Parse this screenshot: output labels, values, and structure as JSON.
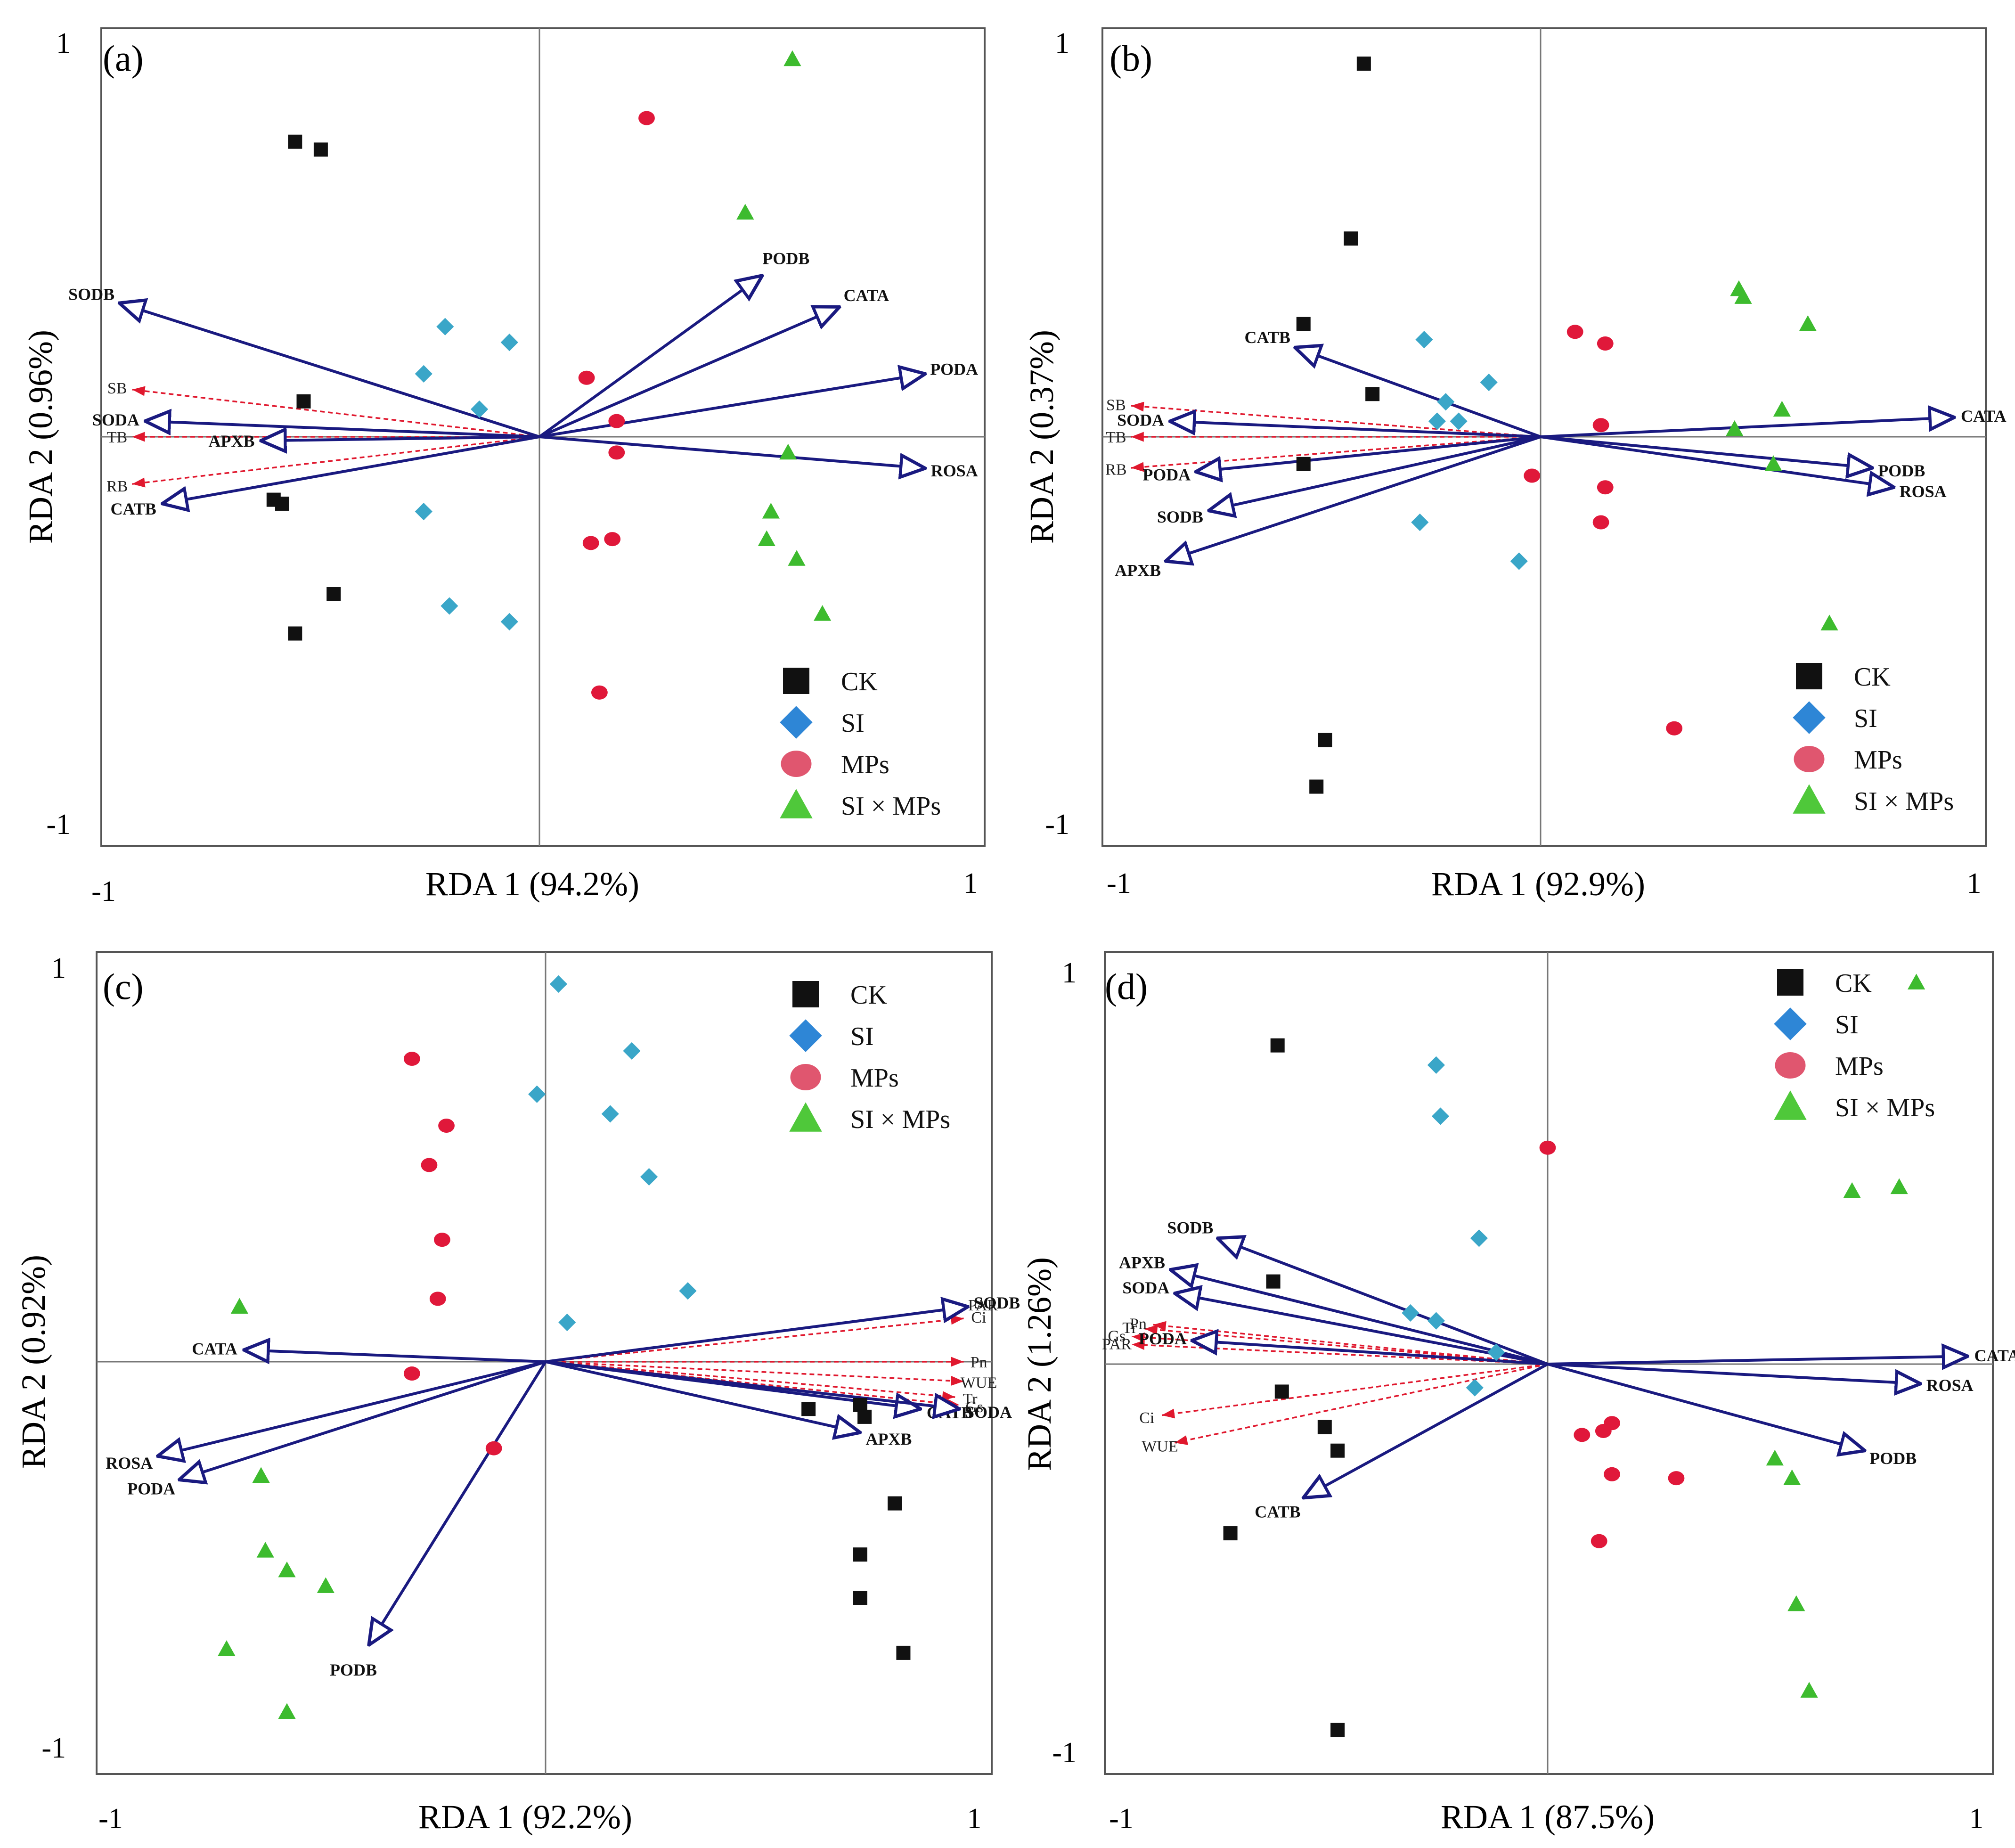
{
  "figure": {
    "legend_labels": [
      "CK",
      "SI",
      "MPs",
      "SI × MPs"
    ],
    "colors": {
      "CK": "#111111",
      "SI": "#3aa6c8",
      "MPs": "#e0183a",
      "SIxMPs": "#3dbb2e",
      "legend_SI": "#2e86d6",
      "legend_MPs": "#e0566f",
      "legend_SIxMPs": "#4fc83a",
      "response": "#1a1a80",
      "explanatory": "#e0182e",
      "axis": "#555555"
    }
  },
  "chart_data": [
    {
      "type": "scatter",
      "panel_label": "(a)",
      "xlabel": "RDA 1 (94.2%)",
      "ylabel": "RDA 2 (0.96%)",
      "xlim": [
        -1,
        1
      ],
      "ylim": [
        -1,
        1
      ],
      "x_ticks": [
        "-1",
        "1"
      ],
      "y_ticks": [
        "1",
        "-1"
      ],
      "legend": "bottom-right",
      "series": [
        {
          "name": "CK",
          "points": [
            [
              -0.57,
              0.75
            ],
            [
              -0.51,
              0.73
            ],
            [
              -0.55,
              0.09
            ],
            [
              -0.62,
              -0.16
            ],
            [
              -0.6,
              -0.17
            ],
            [
              -0.48,
              -0.4
            ],
            [
              -0.57,
              -0.5
            ]
          ]
        },
        {
          "name": "SI",
          "points": [
            [
              -0.22,
              0.28
            ],
            [
              -0.07,
              0.24
            ],
            [
              -0.27,
              0.16
            ],
            [
              -0.14,
              0.07
            ],
            [
              -0.27,
              -0.19
            ],
            [
              -0.21,
              -0.43
            ],
            [
              -0.07,
              -0.47
            ]
          ]
        },
        {
          "name": "MPs",
          "points": [
            [
              0.25,
              0.81
            ],
            [
              0.11,
              0.15
            ],
            [
              0.18,
              0.04
            ],
            [
              0.18,
              -0.04
            ],
            [
              0.17,
              -0.26
            ],
            [
              0.12,
              -0.27
            ],
            [
              0.14,
              -0.65
            ]
          ]
        },
        {
          "name": "SI × MPs",
          "points": [
            [
              0.59,
              0.96
            ],
            [
              0.48,
              0.57
            ],
            [
              0.58,
              -0.04
            ],
            [
              0.54,
              -0.19
            ],
            [
              0.53,
              -0.26
            ],
            [
              0.6,
              -0.31
            ],
            [
              0.66,
              -0.45
            ]
          ]
        }
      ],
      "response_vectors": [
        {
          "label": "PODB",
          "x": 0.52,
          "y": 0.41
        },
        {
          "label": "CATA",
          "x": 0.7,
          "y": 0.33
        },
        {
          "label": "PODA",
          "x": 0.9,
          "y": 0.16
        },
        {
          "label": "ROSA",
          "x": 0.9,
          "y": -0.08
        },
        {
          "label": "SODB",
          "x": -0.98,
          "y": 0.34
        },
        {
          "label": "SODA",
          "x": -0.92,
          "y": 0.04
        },
        {
          "label": "APXB",
          "x": -0.65,
          "y": -0.01
        },
        {
          "label": "CATB",
          "x": -0.88,
          "y": -0.17
        }
      ],
      "explanatory_vectors": [
        {
          "label": "SB",
          "x": -0.95,
          "y": 0.12
        },
        {
          "label": "TB",
          "x": -0.95,
          "y": 0.0
        },
        {
          "label": "RB",
          "x": -0.95,
          "y": -0.12
        }
      ]
    },
    {
      "type": "scatter",
      "panel_label": "(b)",
      "xlabel": "RDA 1 (92.9%)",
      "ylabel": "RDA 2 (0.37%)",
      "xlim": [
        -1,
        1
      ],
      "ylim": [
        -1,
        1
      ],
      "x_ticks": [
        "-1",
        "1"
      ],
      "y_ticks": [
        "1",
        "-1"
      ],
      "legend": "bottom-right",
      "series": [
        {
          "name": "CK",
          "points": [
            [
              -0.41,
              0.96
            ],
            [
              -0.44,
              0.51
            ],
            [
              -0.55,
              0.29
            ],
            [
              -0.39,
              0.11
            ],
            [
              -0.55,
              -0.07
            ],
            [
              -0.5,
              -0.78
            ],
            [
              -0.52,
              -0.9
            ]
          ]
        },
        {
          "name": "SI",
          "points": [
            [
              -0.27,
              0.25
            ],
            [
              -0.22,
              0.09
            ],
            [
              -0.24,
              0.04
            ],
            [
              -0.19,
              0.04
            ],
            [
              -0.12,
              0.14
            ],
            [
              -0.28,
              -0.22
            ],
            [
              -0.05,
              -0.32
            ]
          ]
        },
        {
          "name": "MPs",
          "points": [
            [
              0.08,
              0.27
            ],
            [
              0.15,
              0.24
            ],
            [
              0.14,
              0.03
            ],
            [
              -0.02,
              -0.1
            ],
            [
              0.15,
              -0.13
            ],
            [
              0.14,
              -0.22
            ],
            [
              0.31,
              -0.75
            ]
          ]
        },
        {
          "name": "SI × MPs",
          "points": [
            [
              0.46,
              0.38
            ],
            [
              0.47,
              0.36
            ],
            [
              0.62,
              0.29
            ],
            [
              0.56,
              0.07
            ],
            [
              0.45,
              0.02
            ],
            [
              0.54,
              -0.07
            ],
            [
              0.67,
              -0.48
            ]
          ]
        }
      ],
      "response_vectors": [
        {
          "label": "CATB",
          "x": -0.57,
          "y": 0.23
        },
        {
          "label": "CATA",
          "x": 0.96,
          "y": 0.05
        },
        {
          "label": "PODB",
          "x": 0.77,
          "y": -0.08
        },
        {
          "label": "ROSA",
          "x": 0.82,
          "y": -0.13
        },
        {
          "label": "SODA",
          "x": -0.86,
          "y": 0.04
        },
        {
          "label": "PODA",
          "x": -0.8,
          "y": -0.09
        },
        {
          "label": "SODB",
          "x": -0.77,
          "y": -0.19
        },
        {
          "label": "APXB",
          "x": -0.87,
          "y": -0.32
        }
      ],
      "explanatory_vectors": [
        {
          "label": "SB",
          "x": -0.95,
          "y": 0.08
        },
        {
          "label": "TB",
          "x": -0.95,
          "y": 0.0
        },
        {
          "label": "RB",
          "x": -0.95,
          "y": -0.08
        }
      ]
    },
    {
      "type": "scatter",
      "panel_label": "(c)",
      "xlabel": "RDA 1 (92.2%)",
      "ylabel": "RDA 2 (0.92%)",
      "xlim": [
        -1,
        1
      ],
      "ylim": [
        -1,
        1
      ],
      "x_ticks": [
        "-1",
        "1"
      ],
      "y_ticks": [
        "1",
        "-1"
      ],
      "legend": "top-right",
      "series": [
        {
          "name": "CK",
          "points": [
            [
              0.61,
              -0.12
            ],
            [
              0.73,
              -0.11
            ],
            [
              0.74,
              -0.14
            ],
            [
              0.81,
              -0.36
            ],
            [
              0.73,
              -0.49
            ],
            [
              0.73,
              -0.6
            ],
            [
              0.83,
              -0.74
            ]
          ]
        },
        {
          "name": "SI",
          "points": [
            [
              0.03,
              0.96
            ],
            [
              0.2,
              0.79
            ],
            [
              -0.02,
              0.68
            ],
            [
              0.15,
              0.63
            ],
            [
              0.24,
              0.47
            ],
            [
              0.33,
              0.18
            ],
            [
              0.05,
              0.1
            ]
          ]
        },
        {
          "name": "MPs",
          "points": [
            [
              -0.31,
              0.77
            ],
            [
              -0.23,
              0.6
            ],
            [
              -0.27,
              0.5
            ],
            [
              -0.24,
              0.31
            ],
            [
              -0.25,
              0.16
            ],
            [
              -0.31,
              -0.03
            ],
            [
              -0.12,
              -0.22
            ]
          ]
        },
        {
          "name": "SI × MPs",
          "points": [
            [
              -0.71,
              0.14
            ],
            [
              -0.66,
              -0.29
            ],
            [
              -0.65,
              -0.48
            ],
            [
              -0.6,
              -0.53
            ],
            [
              -0.51,
              -0.57
            ],
            [
              -0.74,
              -0.73
            ],
            [
              -0.6,
              -0.89
            ]
          ]
        }
      ],
      "response_vectors": [
        {
          "label": "CATA",
          "x": -0.7,
          "y": 0.03
        },
        {
          "label": "ROSA",
          "x": -0.9,
          "y": -0.24
        },
        {
          "label": "PODA",
          "x": -0.85,
          "y": -0.3
        },
        {
          "label": "PODB",
          "x": -0.41,
          "y": -0.72
        },
        {
          "label": "SODB",
          "x": 0.98,
          "y": 0.14
        },
        {
          "label": "CATB",
          "x": 0.87,
          "y": -0.12
        },
        {
          "label": "SODA",
          "x": 0.96,
          "y": -0.12
        },
        {
          "label": "APXB",
          "x": 0.73,
          "y": -0.18
        }
      ],
      "explanatory_vectors": [
        {
          "label": "PAR",
          "x": 0.98,
          "y": 0.14
        },
        {
          "label": "Ci",
          "x": 0.97,
          "y": 0.11
        },
        {
          "label": "Pn",
          "x": 0.97,
          "y": 0.0
        },
        {
          "label": "WUE",
          "x": 0.97,
          "y": -0.05
        },
        {
          "label": "Tr",
          "x": 0.95,
          "y": -0.09
        },
        {
          "label": "Gs",
          "x": 0.96,
          "y": -0.11
        }
      ]
    },
    {
      "type": "scatter",
      "panel_label": "(d)",
      "xlabel": "RDA 1 (87.5%)",
      "ylabel": "RDA 2 (1.26%)",
      "xlim": [
        -1,
        1
      ],
      "ylim": [
        -1,
        1
      ],
      "x_ticks": [
        "-1",
        "1"
      ],
      "y_ticks": [
        "1",
        "-1"
      ],
      "legend": "top-right",
      "series": [
        {
          "name": "CK",
          "points": [
            [
              -0.63,
              0.81
            ],
            [
              -0.64,
              0.21
            ],
            [
              -0.62,
              -0.07
            ],
            [
              -0.52,
              -0.16
            ],
            [
              -0.49,
              -0.22
            ],
            [
              -0.74,
              -0.43
            ],
            [
              -0.49,
              -0.93
            ]
          ]
        },
        {
          "name": "SI",
          "points": [
            [
              -0.26,
              0.76
            ],
            [
              -0.25,
              0.63
            ],
            [
              -0.16,
              0.32
            ],
            [
              -0.32,
              0.13
            ],
            [
              -0.26,
              0.11
            ],
            [
              -0.12,
              0.03
            ],
            [
              -0.17,
              -0.06
            ]
          ]
        },
        {
          "name": "MPs",
          "points": [
            [
              0.0,
              0.55
            ],
            [
              0.15,
              -0.15
            ],
            [
              0.13,
              -0.17
            ],
            [
              0.08,
              -0.18
            ],
            [
              0.15,
              -0.28
            ],
            [
              0.3,
              -0.29
            ],
            [
              0.12,
              -0.45
            ]
          ]
        },
        {
          "name": "SI × MPs",
          "points": [
            [
              0.86,
              0.97
            ],
            [
              0.71,
              0.44
            ],
            [
              0.82,
              0.45
            ],
            [
              0.53,
              -0.24
            ],
            [
              0.57,
              -0.29
            ],
            [
              0.58,
              -0.61
            ],
            [
              0.61,
              -0.83
            ]
          ]
        }
      ],
      "response_vectors": [
        {
          "label": "SODB",
          "x": -0.77,
          "y": 0.32
        },
        {
          "label": "APXB",
          "x": -0.88,
          "y": 0.24
        },
        {
          "label": "SODA",
          "x": -0.87,
          "y": 0.18
        },
        {
          "label": "PODA",
          "x": -0.83,
          "y": 0.06
        },
        {
          "label": "CATA",
          "x": 0.98,
          "y": 0.02
        },
        {
          "label": "ROSA",
          "x": 0.87,
          "y": -0.05
        },
        {
          "label": "PODB",
          "x": 0.74,
          "y": -0.22
        },
        {
          "label": "CATB",
          "x": -0.57,
          "y": -0.34
        }
      ],
      "explanatory_vectors": [
        {
          "label": "Tr",
          "x": -0.94,
          "y": 0.09
        },
        {
          "label": "Pn",
          "x": -0.92,
          "y": 0.1
        },
        {
          "label": "Gs",
          "x": -0.97,
          "y": 0.07
        },
        {
          "label": "PAR",
          "x": -0.97,
          "y": 0.05
        },
        {
          "label": "Ci",
          "x": -0.9,
          "y": -0.13
        },
        {
          "label": "WUE",
          "x": -0.87,
          "y": -0.2
        }
      ]
    }
  ]
}
